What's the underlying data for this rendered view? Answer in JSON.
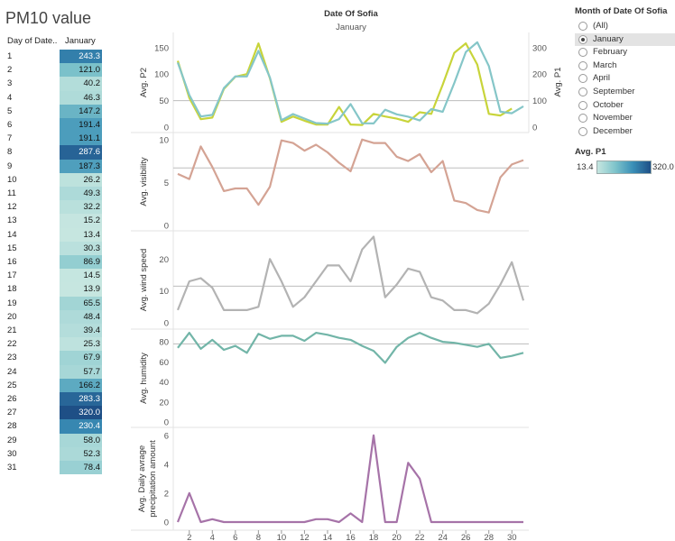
{
  "page_title": "PM10 value",
  "table": {
    "header_day": "Day of Date..",
    "header_month": "January",
    "rows": [
      [
        "1",
        "243.3"
      ],
      [
        "2",
        "121.0"
      ],
      [
        "3",
        "40.2"
      ],
      [
        "4",
        "46.3"
      ],
      [
        "5",
        "147.2"
      ],
      [
        "6",
        "191.4"
      ],
      [
        "7",
        "191.1"
      ],
      [
        "8",
        "287.6"
      ],
      [
        "9",
        "187.3"
      ],
      [
        "10",
        "26.2"
      ],
      [
        "11",
        "49.3"
      ],
      [
        "12",
        "32.2"
      ],
      [
        "13",
        "15.2"
      ],
      [
        "14",
        "13.4"
      ],
      [
        "15",
        "30.3"
      ],
      [
        "16",
        "86.9"
      ],
      [
        "17",
        "14.5"
      ],
      [
        "18",
        "13.9"
      ],
      [
        "19",
        "65.5"
      ],
      [
        "20",
        "48.4"
      ],
      [
        "21",
        "39.4"
      ],
      [
        "22",
        "25.3"
      ],
      [
        "23",
        "67.9"
      ],
      [
        "24",
        "57.7"
      ],
      [
        "25",
        "166.2"
      ],
      [
        "26",
        "283.3"
      ],
      [
        "27",
        "320.0"
      ],
      [
        "28",
        "230.4"
      ],
      [
        "29",
        "58.0"
      ],
      [
        "30",
        "52.3"
      ],
      [
        "31",
        "78.4"
      ]
    ]
  },
  "filter": {
    "title": "Month of Date Of Sofia",
    "options": [
      "(All)",
      "January",
      "February",
      "March",
      "April",
      "September",
      "October",
      "November",
      "December"
    ],
    "selected": "January"
  },
  "color_legend": {
    "title": "Avg. P1",
    "min": "13.4",
    "max": "320.0",
    "colors": [
      "#c6e6e0",
      "#7fc4cb",
      "#3a8fb7",
      "#1e4f86"
    ]
  },
  "chart_header": {
    "title": "Date Of Sofia",
    "subtitle": "January"
  },
  "chart_data": [
    {
      "type": "line",
      "ylabel": "Avg. P2",
      "y2label": "Avg. P1",
      "x": [
        1,
        2,
        3,
        4,
        5,
        6,
        7,
        8,
        9,
        10,
        11,
        12,
        13,
        14,
        15,
        16,
        17,
        18,
        19,
        20,
        21,
        22,
        23,
        24,
        25,
        26,
        27,
        28,
        29,
        30,
        31
      ],
      "ylim": [
        0,
        170
      ],
      "yticks": [
        0,
        50,
        100,
        150
      ],
      "y2lim": [
        0,
        340
      ],
      "y2ticks": [
        0,
        100,
        200,
        300
      ],
      "reference_line": 50,
      "series": [
        {
          "name": "Avg. P2",
          "axis": "left",
          "color": "#c8d43a",
          "values": [
            125,
            55,
            15,
            18,
            72,
            95,
            100,
            158,
            92,
            10,
            20,
            12,
            5,
            5,
            38,
            5,
            4,
            25,
            20,
            16,
            10,
            28,
            25,
            80,
            140,
            158,
            118,
            25,
            22,
            35,
            null
          ]
        },
        {
          "name": "Avg. P1",
          "axis": "right",
          "color": "#85c6c8",
          "values": [
            243.3,
            121.0,
            40.2,
            46.3,
            147.2,
            191.4,
            191.1,
            287.6,
            187.3,
            26.2,
            49.3,
            32.2,
            15.2,
            13.4,
            30.3,
            86.9,
            14.5,
            13.9,
            65.5,
            48.4,
            39.4,
            25.3,
            67.9,
            57.7,
            166.2,
            283.3,
            320.0,
            230.4,
            58.0,
            52.3,
            78.4
          ]
        }
      ]
    },
    {
      "type": "line",
      "ylabel": "Avg. visibility",
      "ylim": [
        0,
        10.5
      ],
      "yticks": [
        0,
        5,
        10
      ],
      "reference_line": 6.7,
      "series": [
        {
          "name": "Avg. visibility",
          "color": "#d4a394",
          "values": [
            6.0,
            5.4,
            9.2,
            6.8,
            4.0,
            4.3,
            4.3,
            2.4,
            4.5,
            9.9,
            9.6,
            8.7,
            9.4,
            8.5,
            7.3,
            6.3,
            10.0,
            9.6,
            9.6,
            8.0,
            7.5,
            8.3,
            6.2,
            7.5,
            2.9,
            2.6,
            1.8,
            1.5,
            5.6,
            7.1,
            7.6
          ]
        }
      ]
    },
    {
      "type": "line",
      "ylabel": "Avg. wind speed",
      "ylim": [
        0,
        28
      ],
      "yticks": [
        0,
        10,
        20
      ],
      "reference_line": 11.5,
      "series": [
        {
          "name": "Avg. wind speed",
          "color": "#b3b3b3",
          "values": [
            4,
            13,
            14,
            11,
            4,
            4,
            4,
            5,
            20,
            13,
            5,
            8,
            13,
            18,
            18,
            13,
            23,
            27,
            8,
            12,
            17,
            16,
            8,
            7,
            4,
            4,
            3,
            6,
            12,
            19,
            7
          ]
        }
      ]
    },
    {
      "type": "line",
      "ylabel": "Avg. humidity",
      "ylim": [
        0,
        90
      ],
      "yticks": [
        0,
        20,
        40,
        60,
        80
      ],
      "reference_line": 78,
      "series": [
        {
          "name": "Avg. humidity",
          "color": "#72b5a8",
          "values": [
            74,
            89,
            73,
            82,
            72,
            76,
            69,
            88,
            83,
            86,
            86,
            81,
            89,
            87,
            84,
            82,
            76,
            71,
            59,
            75,
            84,
            89,
            84,
            80,
            79,
            77,
            75,
            78,
            64,
            66,
            69
          ]
        }
      ]
    },
    {
      "type": "line",
      "ylabel": "Avg. Daily avrage precipitation amount",
      "ylim": [
        0,
        6.3
      ],
      "yticks": [
        0,
        2,
        4,
        6
      ],
      "series": [
        {
          "name": "Avg. Daily avrage precipitation amount",
          "color": "#a673a8",
          "values": [
            0,
            2,
            0,
            0.2,
            0,
            0,
            0,
            0,
            0,
            0,
            0,
            0,
            0.2,
            0.2,
            0,
            0.6,
            0,
            6,
            0,
            0,
            4.1,
            3,
            0,
            0,
            0,
            0,
            0,
            0,
            0,
            0,
            0
          ]
        }
      ]
    }
  ],
  "x_axis": {
    "ticks": [
      2,
      4,
      6,
      8,
      10,
      12,
      14,
      16,
      18,
      20,
      22,
      24,
      26,
      28,
      30
    ]
  }
}
